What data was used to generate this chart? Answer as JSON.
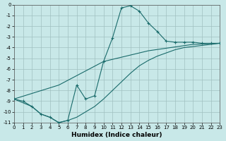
{
  "xlabel": "Humidex (Indice chaleur)",
  "xlim": [
    0,
    23
  ],
  "ylim": [
    -11,
    0
  ],
  "xticks": [
    0,
    1,
    2,
    3,
    4,
    5,
    6,
    7,
    8,
    9,
    10,
    11,
    12,
    13,
    14,
    15,
    16,
    17,
    18,
    19,
    20,
    21,
    22,
    23
  ],
  "yticks": [
    0,
    -1,
    -2,
    -3,
    -4,
    -5,
    -6,
    -7,
    -8,
    -9,
    -10,
    -11
  ],
  "bg_color": "#c8e8e8",
  "grid_color": "#a0c0c0",
  "line_color": "#1a6b6b",
  "curve_x": [
    0,
    1,
    2,
    3,
    4,
    5,
    6,
    7,
    8,
    9,
    10,
    11,
    12,
    13,
    14,
    15,
    16,
    17,
    18,
    19,
    20,
    21,
    22,
    23
  ],
  "curve_y": [
    -8.8,
    -9.0,
    -9.5,
    -10.2,
    -10.5,
    -11.0,
    -10.8,
    -7.5,
    -8.8,
    -8.5,
    -5.3,
    -3.1,
    -0.3,
    -0.1,
    -0.6,
    -1.7,
    -2.5,
    -3.4,
    -3.5,
    -3.5,
    -3.5,
    -3.6,
    -3.6,
    -3.6
  ],
  "diag_upper_x": [
    0,
    5,
    10,
    15,
    20,
    23
  ],
  "diag_upper_y": [
    -8.8,
    -7.5,
    -5.3,
    -4.3,
    -3.7,
    -3.6
  ],
  "diag_lower_x": [
    0,
    2,
    3,
    4,
    5,
    6,
    7,
    8,
    9,
    10,
    11,
    12,
    13,
    14,
    15,
    16,
    17,
    18,
    19,
    20,
    21,
    22,
    23
  ],
  "diag_lower_y": [
    -8.8,
    -9.5,
    -10.2,
    -10.5,
    -11.0,
    -10.8,
    -10.5,
    -10.0,
    -9.5,
    -8.8,
    -8.0,
    -7.2,
    -6.4,
    -5.7,
    -5.2,
    -4.8,
    -4.5,
    -4.2,
    -4.0,
    -3.9,
    -3.8,
    -3.7,
    -3.6
  ]
}
